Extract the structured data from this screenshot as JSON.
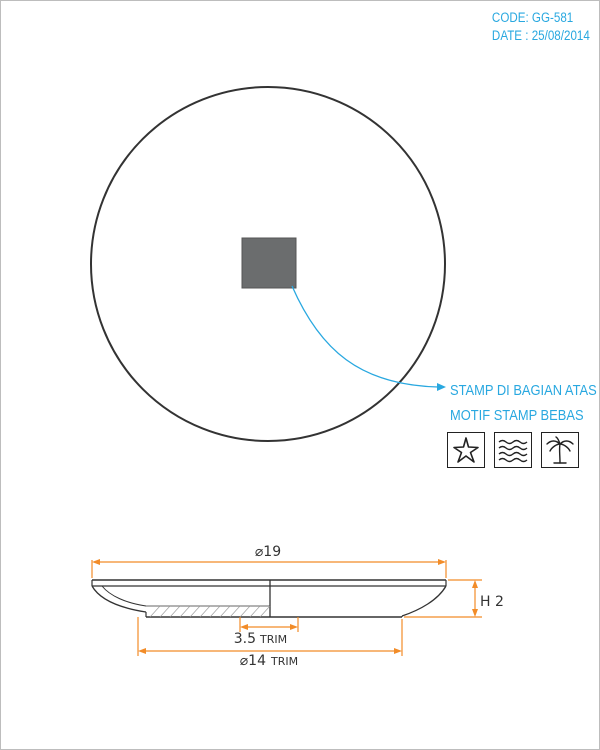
{
  "header": {
    "code": "CODE: GG-581",
    "date": "DATE : 25/08/2014"
  },
  "callout": {
    "line1": "STAMP DI BAGIAN ATAS",
    "line2": "MOTIF STAMP BEBAS"
  },
  "stamp_motifs": [
    {
      "icon": "starfish-icon"
    },
    {
      "icon": "waves-icon"
    },
    {
      "icon": "palm-tree-icon"
    }
  ],
  "dimensions": {
    "outer_diameter": "⌀19",
    "height": "H 2",
    "inner_trim_value": "3.5",
    "inner_trim_unit": "TRIM",
    "base_diameter": "⌀14",
    "base_trim_unit": "TRIM"
  },
  "colors": {
    "accent_blue": "#29a8e0",
    "dimension_orange": "#f28c28",
    "stamp_fill": "#6b6d6e",
    "line": "#333333"
  }
}
